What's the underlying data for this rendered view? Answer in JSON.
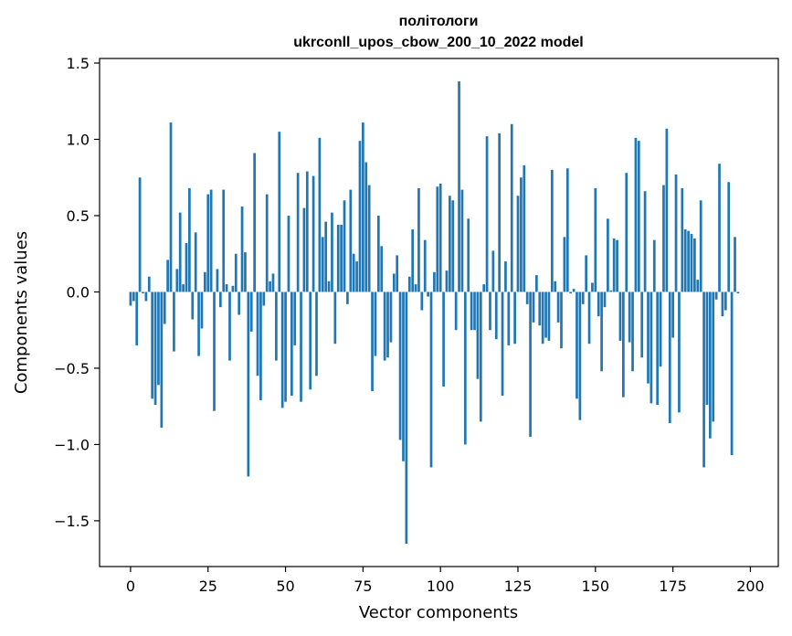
{
  "chart_data": {
    "type": "bar",
    "title_lines": [
      "політологи",
      "ukrconll_upos_cbow_200_10_2022 model"
    ],
    "xlabel": "Vector components",
    "ylabel": "Components values",
    "xlim": [
      -10,
      209
    ],
    "ylim": [
      -1.8,
      1.53
    ],
    "xticks": [
      0,
      25,
      50,
      75,
      100,
      125,
      150,
      175,
      200
    ],
    "yticks": [
      -1.5,
      -1.0,
      -0.5,
      0.0,
      0.5,
      1.0,
      1.5
    ],
    "ytick_labels": [
      "−1.5",
      "−1.0",
      "−0.5",
      "0.0",
      "0.5",
      "1.0",
      "1.5"
    ],
    "bar_color": "#1f77b4",
    "values": [
      -0.09,
      -0.06,
      -0.35,
      0.75,
      -0.01,
      -0.06,
      0.1,
      -0.7,
      -0.74,
      -0.61,
      -0.89,
      -0.21,
      0.21,
      1.11,
      -0.39,
      0.15,
      0.52,
      0.05,
      0.32,
      0.68,
      -0.18,
      0.39,
      -0.42,
      -0.24,
      0.13,
      0.64,
      0.67,
      -0.78,
      0.15,
      -0.1,
      0.67,
      0.05,
      -0.45,
      0.04,
      0.25,
      -0.15,
      0.56,
      0.26,
      -1.21,
      -0.26,
      0.91,
      -0.55,
      -0.71,
      -0.09,
      0.64,
      0.07,
      0.12,
      -0.45,
      1.05,
      -0.76,
      -0.72,
      0.5,
      -0.68,
      -0.35,
      0.78,
      -0.72,
      0.55,
      0.79,
      -0.64,
      0.76,
      -0.55,
      1.01,
      0.36,
      0.46,
      0.07,
      0.52,
      -0.34,
      0.44,
      0.44,
      0.6,
      -0.08,
      0.67,
      0.25,
      0.2,
      0.99,
      1.11,
      0.85,
      0.7,
      -0.65,
      -0.42,
      0.5,
      0.3,
      -0.45,
      -0.43,
      -0.33,
      0.12,
      0.24,
      -0.97,
      -1.11,
      -1.65,
      0.1,
      0.41,
      0.05,
      0.68,
      -0.12,
      0.34,
      -0.03,
      -1.15,
      0.13,
      0.69,
      0.71,
      -0.62,
      0.14,
      0.63,
      0.6,
      -0.25,
      1.38,
      0.67,
      -1.0,
      0.48,
      -0.25,
      -0.25,
      -0.57,
      -0.85,
      0.05,
      1.02,
      -0.25,
      0.27,
      -0.31,
      1.04,
      -0.68,
      0.2,
      -0.35,
      1.1,
      -0.34,
      0.63,
      0.75,
      0.83,
      -0.08,
      -0.95,
      -0.2,
      0.11,
      -0.22,
      -0.34,
      -0.3,
      -0.32,
      0.8,
      0.07,
      -0.2,
      -0.37,
      0.36,
      0.81,
      -0.01,
      0.02,
      -0.7,
      -0.84,
      -0.08,
      0.24,
      -0.34,
      0.06,
      0.68,
      -0.16,
      -0.52,
      -0.1,
      0.48,
      0.01,
      0.35,
      0.34,
      -0.32,
      -0.69,
      0.78,
      -0.33,
      -0.52,
      1.01,
      0.99,
      -0.43,
      0.66,
      -0.6,
      -0.73,
      0.34,
      -0.74,
      -0.49,
      0.7,
      1.07,
      -0.86,
      -0.3,
      0.77,
      -0.79,
      0.68,
      0.41,
      0.4,
      0.38,
      0.35,
      0.08,
      0.6,
      -1.15,
      -0.74,
      -0.96,
      -0.85,
      -0.05,
      0.84,
      -0.16,
      -0.12,
      0.72,
      -1.07,
      0.36,
      -0.01
    ]
  }
}
